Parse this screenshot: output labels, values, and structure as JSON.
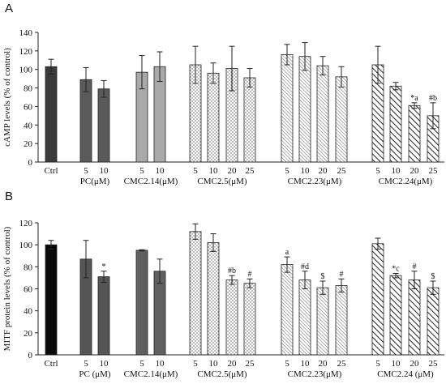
{
  "chart_data": [
    {
      "type": "bar",
      "panel_label": "A",
      "ylabel": "cAMP levels  (% of control)",
      "ylim": [
        0,
        140
      ],
      "yticks": [
        0,
        20,
        40,
        60,
        80,
        100,
        120,
        140
      ],
      "grid": false,
      "categories": [
        "Ctrl",
        "5",
        "10",
        "5",
        "10",
        "5",
        "10",
        "20",
        "25",
        "5",
        "10",
        "20",
        "25",
        "5",
        "10",
        "20",
        "25"
      ],
      "group_labels": [
        {
          "label": "PC(μM)",
          "group": "pc"
        },
        {
          "label": "CMC2.14(μM)",
          "group": "c214"
        },
        {
          "label": "CMC2.5(μM)",
          "group": "c25"
        },
        {
          "label": "CMC2.23(μM)",
          "group": "c223"
        },
        {
          "label": "CMC2.24(μM)",
          "group": "c224"
        }
      ],
      "bars": [
        {
          "group": "ctrl",
          "category": "Ctrl",
          "value": 103,
          "error": 8,
          "annotation": ""
        },
        {
          "group": "pc",
          "category": "5",
          "value": 89,
          "error": 13,
          "annotation": ""
        },
        {
          "group": "pc",
          "category": "10",
          "value": 79,
          "error": 9,
          "annotation": ""
        },
        {
          "group": "c214",
          "category": "5",
          "value": 97,
          "error": 18,
          "annotation": ""
        },
        {
          "group": "c214",
          "category": "10",
          "value": 103,
          "error": 16,
          "annotation": ""
        },
        {
          "group": "c25",
          "category": "5",
          "value": 105,
          "error": 20,
          "annotation": ""
        },
        {
          "group": "c25",
          "category": "10",
          "value": 96,
          "error": 11,
          "annotation": ""
        },
        {
          "group": "c25",
          "category": "20",
          "value": 101,
          "error": 24,
          "annotation": ""
        },
        {
          "group": "c25",
          "category": "25",
          "value": 91,
          "error": 10,
          "annotation": ""
        },
        {
          "group": "c223",
          "category": "5",
          "value": 116,
          "error": 11,
          "annotation": ""
        },
        {
          "group": "c223",
          "category": "10",
          "value": 114,
          "error": 15,
          "annotation": ""
        },
        {
          "group": "c223",
          "category": "20",
          "value": 104,
          "error": 10,
          "annotation": ""
        },
        {
          "group": "c223",
          "category": "25",
          "value": 92,
          "error": 11,
          "annotation": ""
        },
        {
          "group": "c224",
          "category": "5",
          "value": 105,
          "error": 20,
          "annotation": ""
        },
        {
          "group": "c224",
          "category": "10",
          "value": 82,
          "error": 4,
          "annotation": ""
        },
        {
          "group": "c224",
          "category": "20",
          "value": 61,
          "error": 3,
          "annotation": "*a"
        },
        {
          "group": "c224",
          "category": "25",
          "value": 50,
          "error": 14,
          "annotation": "#b"
        }
      ]
    },
    {
      "type": "bar",
      "panel_label": "B",
      "ylabel": "MITF protein levels (% of control)",
      "ylim": [
        0,
        120
      ],
      "yticks": [
        0,
        20,
        40,
        60,
        80,
        100,
        120
      ],
      "grid": false,
      "categories": [
        "Ctrl",
        "5",
        "10",
        "5",
        "10",
        "5",
        "10",
        "20",
        "25",
        "5",
        "10",
        "20",
        "25",
        "5",
        "10",
        "20",
        "25"
      ],
      "group_labels": [
        {
          "label": "PC (μM)",
          "group": "pc"
        },
        {
          "label": "CMC2.14(μM)",
          "group": "c214"
        },
        {
          "label": "CMC2.5(μM)",
          "group": "c25"
        },
        {
          "label": "CMC2.23(μM)",
          "group": "c223"
        },
        {
          "label": "CMC2.24 (μM)",
          "group": "c224"
        }
      ],
      "bars": [
        {
          "group": "ctrl",
          "category": "Ctrl",
          "value": 100,
          "error": 4,
          "annotation": ""
        },
        {
          "group": "pc",
          "category": "5",
          "value": 87,
          "error": 17,
          "annotation": ""
        },
        {
          "group": "pc",
          "category": "10",
          "value": 71,
          "error": 5,
          "annotation": "*"
        },
        {
          "group": "c214",
          "category": "5",
          "value": 95,
          "error": 0.5,
          "annotation": ""
        },
        {
          "group": "c214",
          "category": "10",
          "value": 76,
          "error": 11,
          "annotation": ""
        },
        {
          "group": "c25",
          "category": "5",
          "value": 112,
          "error": 7,
          "annotation": ""
        },
        {
          "group": "c25",
          "category": "10",
          "value": 102,
          "error": 8,
          "annotation": ""
        },
        {
          "group": "c25",
          "category": "20",
          "value": 68,
          "error": 4,
          "annotation": "#b"
        },
        {
          "group": "c25",
          "category": "25",
          "value": 65,
          "error": 4,
          "annotation": "#"
        },
        {
          "group": "c223",
          "category": "5",
          "value": 82,
          "error": 7,
          "annotation": "a"
        },
        {
          "group": "c223",
          "category": "10",
          "value": 68,
          "error": 8,
          "annotation": "#d"
        },
        {
          "group": "c223",
          "category": "20",
          "value": 61,
          "error": 6,
          "annotation": "$"
        },
        {
          "group": "c223",
          "category": "25",
          "value": 63,
          "error": 6,
          "annotation": "#"
        },
        {
          "group": "c224",
          "category": "5",
          "value": 101,
          "error": 5,
          "annotation": ""
        },
        {
          "group": "c224",
          "category": "10",
          "value": 72,
          "error": 2,
          "annotation": "*c"
        },
        {
          "group": "c224",
          "category": "20",
          "value": 68,
          "error": 8,
          "annotation": "#"
        },
        {
          "group": "c224",
          "category": "25",
          "value": 61,
          "error": 6,
          "annotation": "$"
        }
      ]
    }
  ],
  "group_styles": {
    "ctrl": {
      "fill": "#3a3a3a",
      "pattern": "solid"
    },
    "pc": {
      "fill": "#5a5a5a",
      "pattern": "solid"
    },
    "c214": {
      "fill": "#a9a9a9",
      "pattern": "solid"
    },
    "c25": {
      "fill": "#ffffff",
      "pattern": "dots"
    },
    "c223": {
      "fill": "#ffffff",
      "pattern": "fine-diagonal"
    },
    "c224": {
      "fill": "#ffffff",
      "pattern": "bold-diagonal"
    }
  },
  "group_styles_b": {
    "ctrl": {
      "fill": "#0a0a0a",
      "pattern": "solid"
    },
    "pc": {
      "fill": "#555555",
      "pattern": "solid"
    },
    "c214": {
      "fill": "#606060",
      "pattern": "solid"
    }
  }
}
